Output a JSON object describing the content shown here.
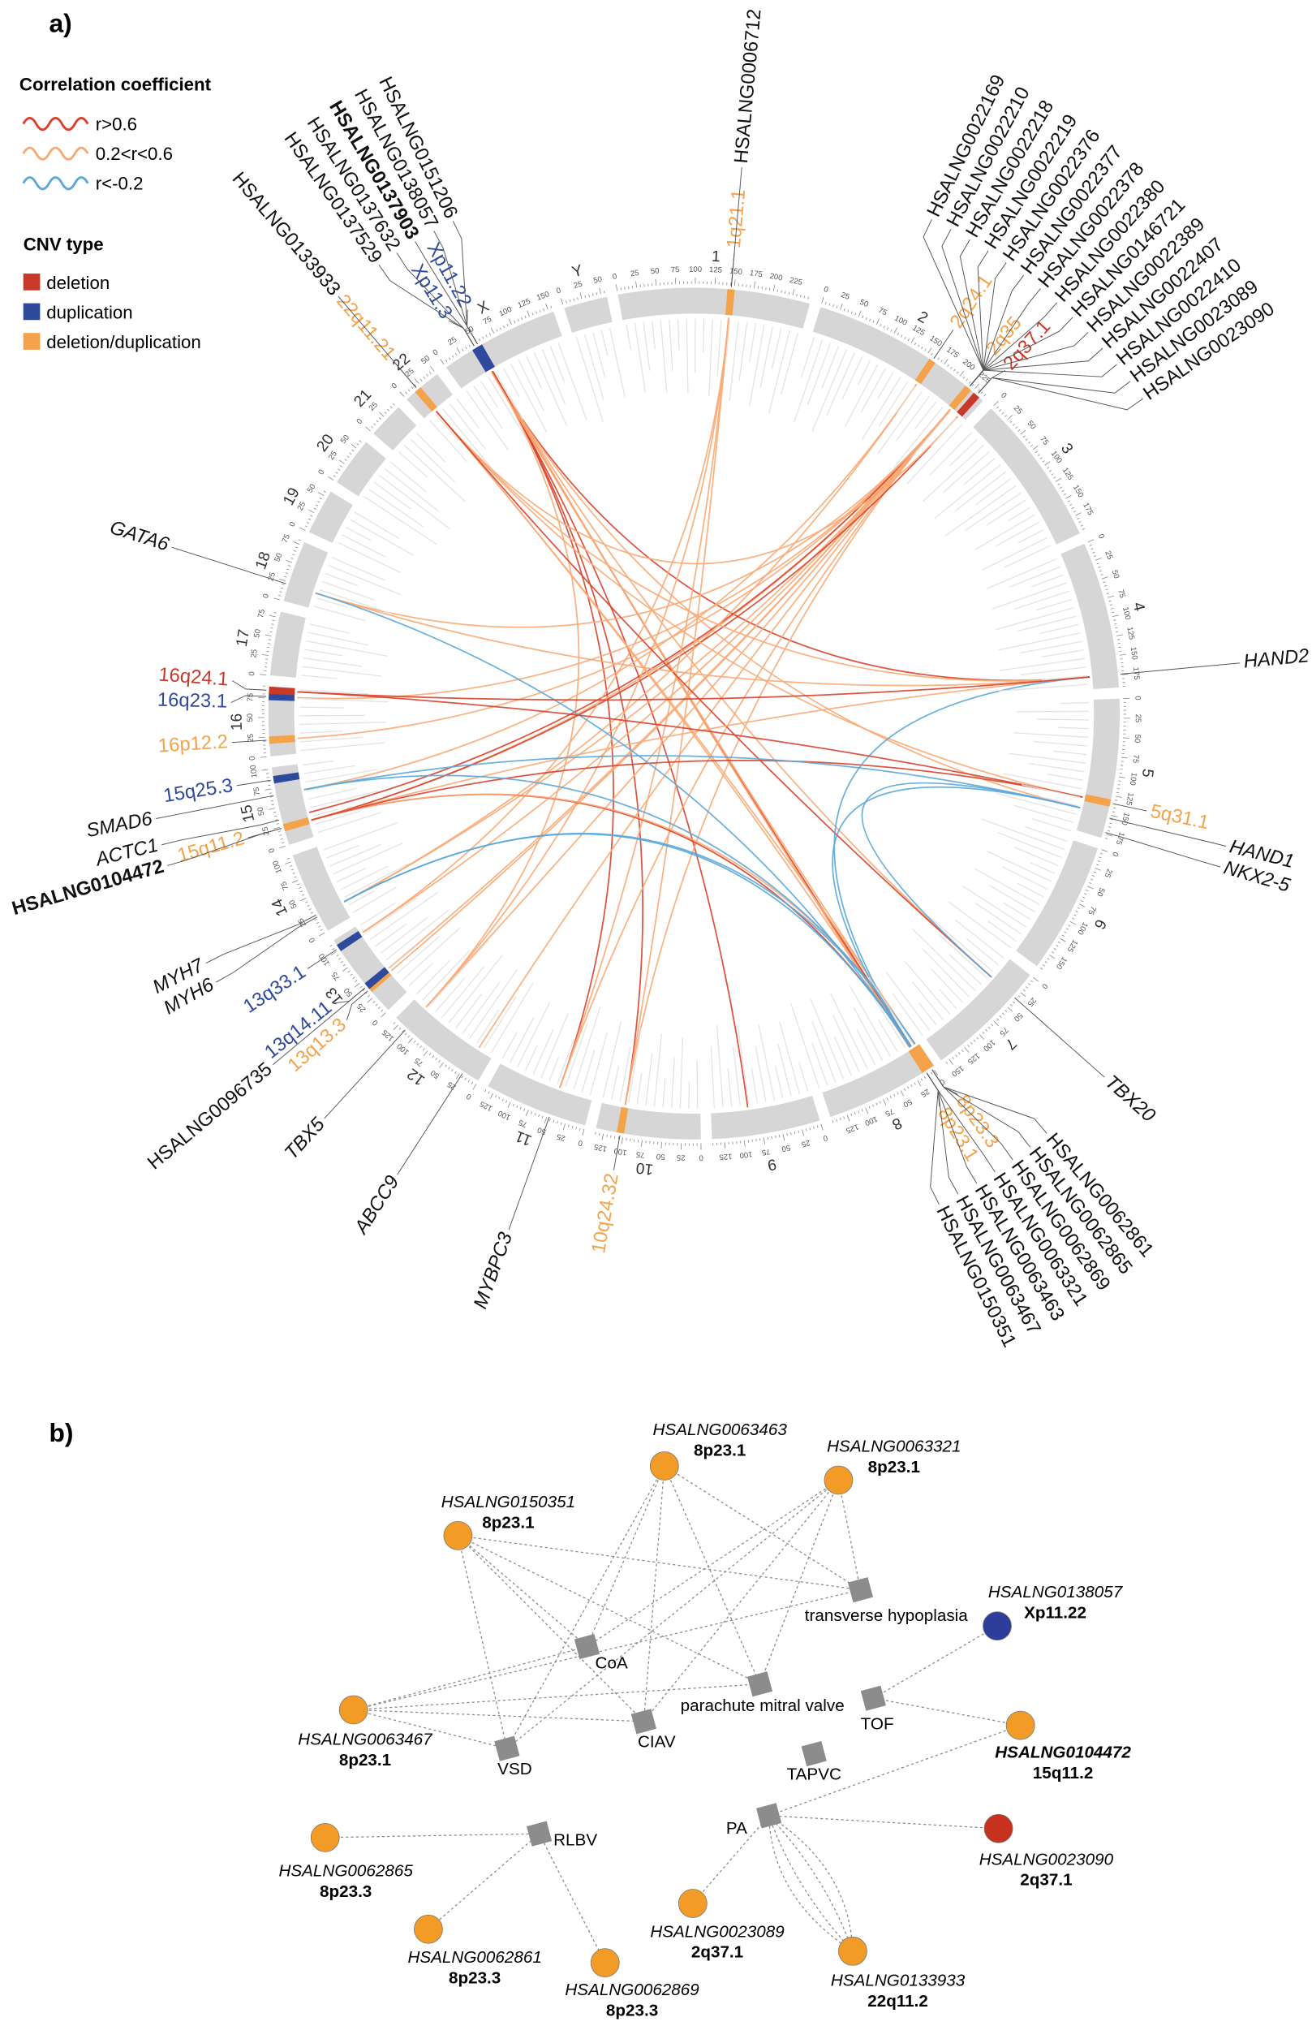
{
  "panel_a": {
    "label": "a)",
    "legend": {
      "correlation_title": "Correlation coefficient",
      "correlation_items": [
        {
          "label": "r>0.6",
          "color": "#d9412b"
        },
        {
          "label": "0.2<r<0.6",
          "color": "#f9aa74"
        },
        {
          "label": "r<-0.2",
          "color": "#5aa9d9"
        }
      ],
      "cnv_title": "CNV type",
      "cnv_items": [
        {
          "label": "deletion",
          "color": "#c9392a"
        },
        {
          "label": "duplication",
          "color": "#2f4a9c"
        },
        {
          "label": "deletion/duplication",
          "color": "#f5a34b"
        }
      ]
    },
    "colors": {
      "deletion": "#c9392a",
      "duplication": "#2f4a9c",
      "deldup": "#f5a34b",
      "gene": "#111111",
      "ring": "#d6d6d6"
    },
    "tick_step_mb": 25,
    "chromosomes": [
      {
        "name": "1",
        "length": 249
      },
      {
        "name": "2",
        "length": 243
      },
      {
        "name": "3",
        "length": 198
      },
      {
        "name": "4",
        "length": 191
      },
      {
        "name": "5",
        "length": 181
      },
      {
        "name": "6",
        "length": 171
      },
      {
        "name": "7",
        "length": 159
      },
      {
        "name": "8",
        "length": 146
      },
      {
        "name": "9",
        "length": 141
      },
      {
        "name": "10",
        "length": 136
      },
      {
        "name": "11",
        "length": 135
      },
      {
        "name": "12",
        "length": 133
      },
      {
        "name": "13",
        "length": 114
      },
      {
        "name": "14",
        "length": 107
      },
      {
        "name": "15",
        "length": 102
      },
      {
        "name": "16",
        "length": 90
      },
      {
        "name": "17",
        "length": 83
      },
      {
        "name": "18",
        "length": 80
      },
      {
        "name": "19",
        "length": 59
      },
      {
        "name": "20",
        "length": 64
      },
      {
        "name": "21",
        "length": 47
      },
      {
        "name": "22",
        "length": 51
      },
      {
        "name": "X",
        "length": 156
      },
      {
        "name": "Y",
        "length": 57
      }
    ],
    "cnv_regions": [
      {
        "chr": "1",
        "pos": 146,
        "type": "deldup",
        "label": "1q21.1",
        "genes": [
          "HSALNG0006712"
        ]
      },
      {
        "chr": "2",
        "pos": 160,
        "type": "deldup",
        "label": "2q24.1",
        "genes": []
      },
      {
        "chr": "2",
        "pos": 218,
        "type": "deldup",
        "label": "2q35",
        "genes": [
          "HSALNG0022169",
          "HSALNG0022210",
          "HSALNG0022218",
          "HSALNG0022219",
          "HSALNG0022376",
          "HSALNG0022377",
          "HSALNG0022378",
          "HSALNG0022380",
          "HSALNG0146721",
          "HSALNG0022389",
          "HSALNG0022407",
          "HSALNG0022410"
        ]
      },
      {
        "chr": "2",
        "pos": 232,
        "type": "deletion",
        "label": "2q37.1",
        "genes": [
          "HSALNG0023089",
          "HSALNG0023090"
        ]
      },
      {
        "chr": "5",
        "pos": 135,
        "type": "deldup",
        "label": "5q31.1",
        "genes": []
      },
      {
        "chr": "8",
        "pos": 2,
        "type": "deldup",
        "label": "8p23.3",
        "genes": [
          "HSALNG0062861",
          "HSALNG0062865",
          "HSALNG0062869"
        ]
      },
      {
        "chr": "8",
        "pos": 10,
        "type": "deldup",
        "label": "8p23.1",
        "genes": [
          "HSALNG0063321",
          "HSALNG0063463",
          "HSALNG0063467",
          "HSALNG0150351"
        ]
      },
      {
        "chr": "10",
        "pos": 104,
        "type": "deldup",
        "label": "10q24.32",
        "genes": []
      },
      {
        "chr": "13",
        "pos": 36,
        "type": "deldup",
        "label": "13q13.3",
        "genes": []
      },
      {
        "chr": "13",
        "pos": 41,
        "type": "duplication",
        "label": "13q14.11",
        "genes": [
          "HSALNG0096735"
        ]
      },
      {
        "chr": "13",
        "pos": 102,
        "type": "duplication",
        "label": "13q33.1",
        "genes": []
      },
      {
        "chr": "15",
        "pos": 23,
        "type": "deldup",
        "label": "15q11.2",
        "genes": [
          "HSALNG0104472"
        ],
        "bold_gene": true
      },
      {
        "chr": "15",
        "pos": 86,
        "type": "duplication",
        "label": "15q25.3",
        "genes": []
      },
      {
        "chr": "16",
        "pos": 21,
        "type": "deldup",
        "label": "16p12.2",
        "genes": []
      },
      {
        "chr": "16",
        "pos": 77,
        "type": "duplication",
        "label": "16q23.1",
        "genes": []
      },
      {
        "chr": "16",
        "pos": 85,
        "type": "deletion",
        "label": "16q24.1",
        "genes": []
      },
      {
        "chr": "22",
        "pos": 19,
        "type": "deldup",
        "label": "22q11.21",
        "genes": [
          "HSALNG0133933"
        ]
      },
      {
        "chr": "X",
        "pos": 45,
        "type": "duplication",
        "label": "Xp11.3",
        "genes": [
          "HSALNG0137529",
          "HSALNG0137632"
        ]
      },
      {
        "chr": "X",
        "pos": 50,
        "type": "duplication",
        "label": "Xp11.22",
        "genes": [
          "HSALNG0137903",
          "HSALNG0138057",
          "HSALNG0151206"
        ],
        "bold_index": 0
      }
    ],
    "genes": [
      {
        "chr": "4",
        "pos": 174,
        "name": "HAND2"
      },
      {
        "chr": "5",
        "pos": 154,
        "name": "HAND1"
      },
      {
        "chr": "5",
        "pos": 173,
        "name": "NKX2-5"
      },
      {
        "chr": "7",
        "pos": 35,
        "name": "TBX20"
      },
      {
        "chr": "11",
        "pos": 47,
        "name": "MYBPC3"
      },
      {
        "chr": "12",
        "pos": 22,
        "name": "ABCC9"
      },
      {
        "chr": "12",
        "pos": 114,
        "name": "TBX5"
      },
      {
        "chr": "14",
        "pos": 22,
        "name": "MYH6"
      },
      {
        "chr": "14",
        "pos": 25,
        "name": "MYH7"
      },
      {
        "chr": "15",
        "pos": 34,
        "name": "ACTC1"
      },
      {
        "chr": "15",
        "pos": 66,
        "name": "SMAD6"
      },
      {
        "chr": "18",
        "pos": 22,
        "name": "GATA6"
      }
    ],
    "links": [
      [
        "X",
        48,
        "8",
        8,
        "high"
      ],
      [
        "X",
        48,
        "8",
        10,
        "high"
      ],
      [
        "X",
        49,
        "8",
        11,
        "mid"
      ],
      [
        "X",
        48,
        "4",
        174,
        "high"
      ],
      [
        "X",
        48,
        "5",
        150,
        "mid"
      ],
      [
        "X",
        49,
        "7",
        35,
        "mid"
      ],
      [
        "X",
        48,
        "9",
        90,
        "high"
      ],
      [
        "X",
        49,
        "10",
        104,
        "high"
      ],
      [
        "X",
        48,
        "12",
        114,
        "mid"
      ],
      [
        "X",
        49,
        "11",
        47,
        "high"
      ],
      [
        "X",
        47,
        "8",
        3,
        "mid"
      ],
      [
        "2",
        218,
        "15",
        23,
        "mid"
      ],
      [
        "2",
        218,
        "16",
        21,
        "mid"
      ],
      [
        "2",
        218,
        "13",
        36,
        "mid"
      ],
      [
        "2",
        218,
        "13",
        41,
        "mid"
      ],
      [
        "2",
        218,
        "12",
        114,
        "mid"
      ],
      [
        "2",
        218,
        "12",
        22,
        "mid"
      ],
      [
        "2",
        218,
        "11",
        47,
        "mid"
      ],
      [
        "2",
        218,
        "10",
        104,
        "mid"
      ],
      [
        "2",
        218,
        "14",
        23,
        "mid"
      ],
      [
        "2",
        218,
        "18",
        22,
        "mid"
      ],
      [
        "2",
        218,
        "15",
        34,
        "high"
      ],
      [
        "2",
        218,
        "16",
        77,
        "mid"
      ],
      [
        "2",
        218,
        "13",
        102,
        "mid"
      ],
      [
        "2",
        160,
        "14",
        23,
        "mid"
      ],
      [
        "2",
        160,
        "15",
        66,
        "mid"
      ],
      [
        "2",
        232,
        "15",
        23,
        "high"
      ],
      [
        "2",
        232,
        "22",
        19,
        "mid"
      ],
      [
        "1",
        146,
        "12",
        114,
        "mid"
      ],
      [
        "1",
        146,
        "13",
        102,
        "mid"
      ],
      [
        "1",
        146,
        "11",
        47,
        "mid"
      ],
      [
        "1",
        146,
        "10",
        104,
        "mid"
      ],
      [
        "22",
        19,
        "8",
        10,
        "mid"
      ],
      [
        "22",
        19,
        "8",
        2,
        "mid"
      ],
      [
        "22",
        19,
        "4",
        174,
        "mid"
      ],
      [
        "22",
        19,
        "5",
        135,
        "mid"
      ],
      [
        "22",
        19,
        "7",
        35,
        "high"
      ],
      [
        "15",
        23,
        "8",
        10,
        "high"
      ],
      [
        "15",
        23,
        "8",
        2,
        "mid"
      ],
      [
        "15",
        23,
        "4",
        174,
        "mid"
      ],
      [
        "15",
        23,
        "5",
        135,
        "high"
      ],
      [
        "18",
        22,
        "4",
        174,
        "mid"
      ],
      [
        "18",
        22,
        "8",
        10,
        "neg"
      ],
      [
        "15",
        66,
        "5",
        150,
        "neg"
      ],
      [
        "15",
        66,
        "8",
        2,
        "neg"
      ],
      [
        "14",
        23,
        "8",
        10,
        "neg"
      ],
      [
        "14",
        23,
        "8",
        2,
        "neg"
      ],
      [
        "4",
        174,
        "8",
        8,
        "neg"
      ],
      [
        "5",
        150,
        "8",
        10,
        "neg"
      ],
      [
        "5",
        150,
        "7",
        35,
        "neg"
      ],
      [
        "16",
        85,
        "5",
        135,
        "high"
      ],
      [
        "16",
        85,
        "4",
        174,
        "high"
      ]
    ]
  },
  "panel_b": {
    "label": "b)",
    "node_colors": {
      "deldup": "#f39b27",
      "duplication": "#2e3d9a",
      "deletion": "#c7321f",
      "phenotype": "#8c8c8c"
    },
    "lncrnas": [
      {
        "id": "n63463",
        "name": "HSALNG0063463",
        "band": "8p23.1",
        "type": "deldup"
      },
      {
        "id": "n63321",
        "name": "HSALNG0063321",
        "band": "8p23.1",
        "type": "deldup"
      },
      {
        "id": "n150351",
        "name": "HSALNG0150351",
        "band": "8p23.1",
        "type": "deldup"
      },
      {
        "id": "n138057",
        "name": "HSALNG0138057",
        "band": "Xp11.22",
        "type": "duplication"
      },
      {
        "id": "n63467",
        "name": "HSALNG0063467",
        "band": "8p23.1",
        "type": "deldup"
      },
      {
        "id": "n104472",
        "name": "HSALNG0104472",
        "band": "15q11.2",
        "type": "deldup",
        "bold": true
      },
      {
        "id": "n62865",
        "name": "HSALNG0062865",
        "band": "8p23.3",
        "type": "deldup"
      },
      {
        "id": "n23090",
        "name": "HSALNG0023090",
        "band": "2q37.1",
        "type": "deletion"
      },
      {
        "id": "n23089",
        "name": "HSALNG0023089",
        "band": "2q37.1",
        "type": "deldup"
      },
      {
        "id": "n62861",
        "name": "HSALNG0062861",
        "band": "8p23.3",
        "type": "deldup"
      },
      {
        "id": "n62869",
        "name": "HSALNG0062869",
        "band": "8p23.3",
        "type": "deldup"
      },
      {
        "id": "n133933",
        "name": "HSALNG0133933",
        "band": "22q11.2",
        "type": "deldup"
      }
    ],
    "phenotypes": [
      {
        "id": "th",
        "label": "transverse hypoplasia"
      },
      {
        "id": "coa",
        "label": "CoA"
      },
      {
        "id": "pmv",
        "label": "parachute mitral valve"
      },
      {
        "id": "tof",
        "label": "TOF"
      },
      {
        "id": "ciav",
        "label": "CIAV"
      },
      {
        "id": "vsd",
        "label": "VSD"
      },
      {
        "id": "tapvc",
        "label": "TAPVC"
      },
      {
        "id": "rlbv",
        "label": "RLBV"
      },
      {
        "id": "pa",
        "label": "PA"
      }
    ],
    "edges": [
      [
        "n63463",
        "vsd"
      ],
      [
        "n63463",
        "coa"
      ],
      [
        "n63463",
        "ciav"
      ],
      [
        "n63463",
        "pmv"
      ],
      [
        "n63463",
        "th"
      ],
      [
        "n63321",
        "vsd"
      ],
      [
        "n63321",
        "coa"
      ],
      [
        "n63321",
        "ciav"
      ],
      [
        "n63321",
        "pmv"
      ],
      [
        "n63321",
        "th"
      ],
      [
        "n150351",
        "vsd"
      ],
      [
        "n150351",
        "coa"
      ],
      [
        "n150351",
        "ciav"
      ],
      [
        "n150351",
        "pmv"
      ],
      [
        "n150351",
        "th"
      ],
      [
        "n63467",
        "vsd"
      ],
      [
        "n63467",
        "coa"
      ],
      [
        "n63467",
        "ciav"
      ],
      [
        "n63467",
        "pmv"
      ],
      [
        "n63467",
        "th"
      ],
      [
        "n138057",
        "tof"
      ],
      [
        "n104472",
        "tof"
      ],
      [
        "n104472",
        "pa"
      ],
      [
        "pa",
        "n23090"
      ],
      [
        "pa",
        "n23089"
      ],
      [
        "pa",
        "n133933"
      ],
      [
        "rlbv",
        "n62865"
      ],
      [
        "rlbv",
        "n62861"
      ],
      [
        "rlbv",
        "n62869"
      ]
    ]
  }
}
